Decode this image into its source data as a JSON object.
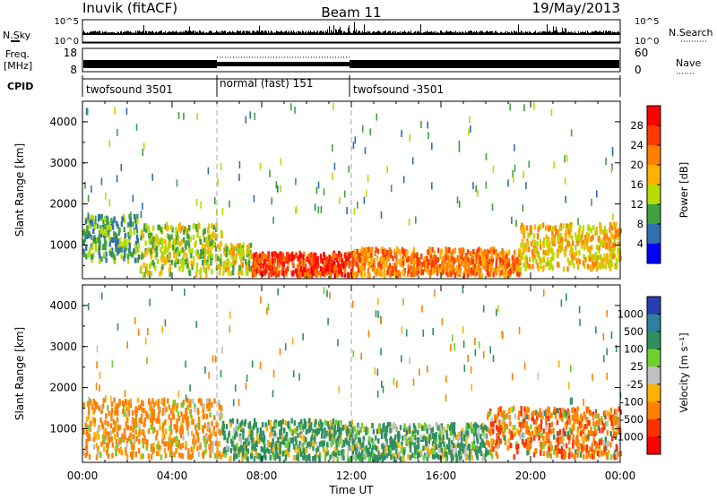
{
  "header": {
    "station": "Inuvik (fitACF)",
    "beam": "Beam 11",
    "date": "19/May/2013"
  },
  "top_panels": {
    "nsky_label": "N.Sky",
    "nsky_ticks": [
      "10^5",
      "10^0"
    ],
    "nsearch_label": "N.Search",
    "nsearch_ticks": [
      "10^5",
      "10^0"
    ],
    "freq_label_1": "Freq.",
    "freq_label_2": "[MHz]",
    "freq_ticks": [
      "18",
      "8"
    ],
    "nave_label": "Nave",
    "nave_ticks": [
      "60",
      "0"
    ],
    "cpid_label": "CPID",
    "cpid_segments": [
      {
        "label": "twofsound 3501",
        "start_hour": 0,
        "end_hour": 6
      },
      {
        "label": "normal (fast) 151",
        "start_hour": 6,
        "end_hour": 12
      },
      {
        "label": "twofsound -3501",
        "start_hour": 12,
        "end_hour": 24
      }
    ]
  },
  "power_colorbar": {
    "title": "Power [dB]",
    "ticks": [
      "28",
      "24",
      "20",
      "16",
      "12",
      "8",
      "4"
    ],
    "colors": [
      "#ff0000",
      "#ff3a00",
      "#ff7f00",
      "#ffb000",
      "#b5dc00",
      "#3fa03f",
      "#2f6fb0",
      "#0000ff"
    ]
  },
  "velocity_colorbar": {
    "title": "Velocity [m s⁻¹]",
    "ticks": [
      "1000",
      "500",
      "100",
      "25",
      "-25",
      "-100",
      "-500",
      "-1000"
    ],
    "colors": [
      "#2a3cb0",
      "#2f7fa0",
      "#2f8f5f",
      "#6fd030",
      "#c0c0c0",
      "#ffb000",
      "#ff8000",
      "#ff3000",
      "#ff0000"
    ]
  },
  "chart_data": [
    {
      "type": "heatmap",
      "title": "Power",
      "xlabel": "",
      "ylabel": "Slant Range [km]",
      "x_ticks": [
        "00:00",
        "04:00",
        "08:00",
        "12:00",
        "16:00",
        "20:00",
        "00:00"
      ],
      "y_ticks": [
        "1000",
        "2000",
        "3000",
        "4000"
      ],
      "xlim": [
        0,
        24
      ],
      "ylim": [
        180,
        4500
      ],
      "scatter_regions": [
        {
          "start_hour": 0.0,
          "end_hour": 2.5,
          "range_min": 600,
          "range_max": 1700,
          "value": 10
        },
        {
          "start_hour": 2.5,
          "end_hour": 6.2,
          "range_min": 250,
          "range_max": 1500,
          "value": 14
        },
        {
          "start_hour": 6.2,
          "end_hour": 7.5,
          "range_min": 300,
          "range_max": 1000,
          "value": 16
        },
        {
          "start_hour": 7.5,
          "end_hour": 12.0,
          "range_min": 250,
          "range_max": 800,
          "value": 26
        },
        {
          "start_hour": 12.0,
          "end_hour": 19.5,
          "range_min": 250,
          "range_max": 900,
          "value": 22
        },
        {
          "start_hour": 19.5,
          "end_hour": 24.0,
          "range_min": 400,
          "range_max": 1500,
          "value": 18
        }
      ]
    },
    {
      "type": "heatmap",
      "title": "Velocity",
      "xlabel": "Time UT",
      "ylabel": "Slant Range [km]",
      "x_ticks": [
        "00:00",
        "04:00",
        "08:00",
        "12:00",
        "16:00",
        "20:00",
        "00:00"
      ],
      "y_ticks": [
        "1000",
        "2000",
        "3000",
        "4000"
      ],
      "xlim": [
        0,
        24
      ],
      "ylim": [
        180,
        4500
      ],
      "scatter_regions": [
        {
          "start_hour": 0.0,
          "end_hour": 6.2,
          "range_min": 300,
          "range_max": 1700,
          "value": -200
        },
        {
          "start_hour": 6.2,
          "end_hour": 12.0,
          "range_min": 250,
          "range_max": 1200,
          "value": 200
        },
        {
          "start_hour": 12.0,
          "end_hour": 18.0,
          "range_min": 250,
          "range_max": 1100,
          "value": 150
        },
        {
          "start_hour": 18.0,
          "end_hour": 24.0,
          "range_min": 300,
          "range_max": 1500,
          "value": -300
        }
      ]
    }
  ]
}
